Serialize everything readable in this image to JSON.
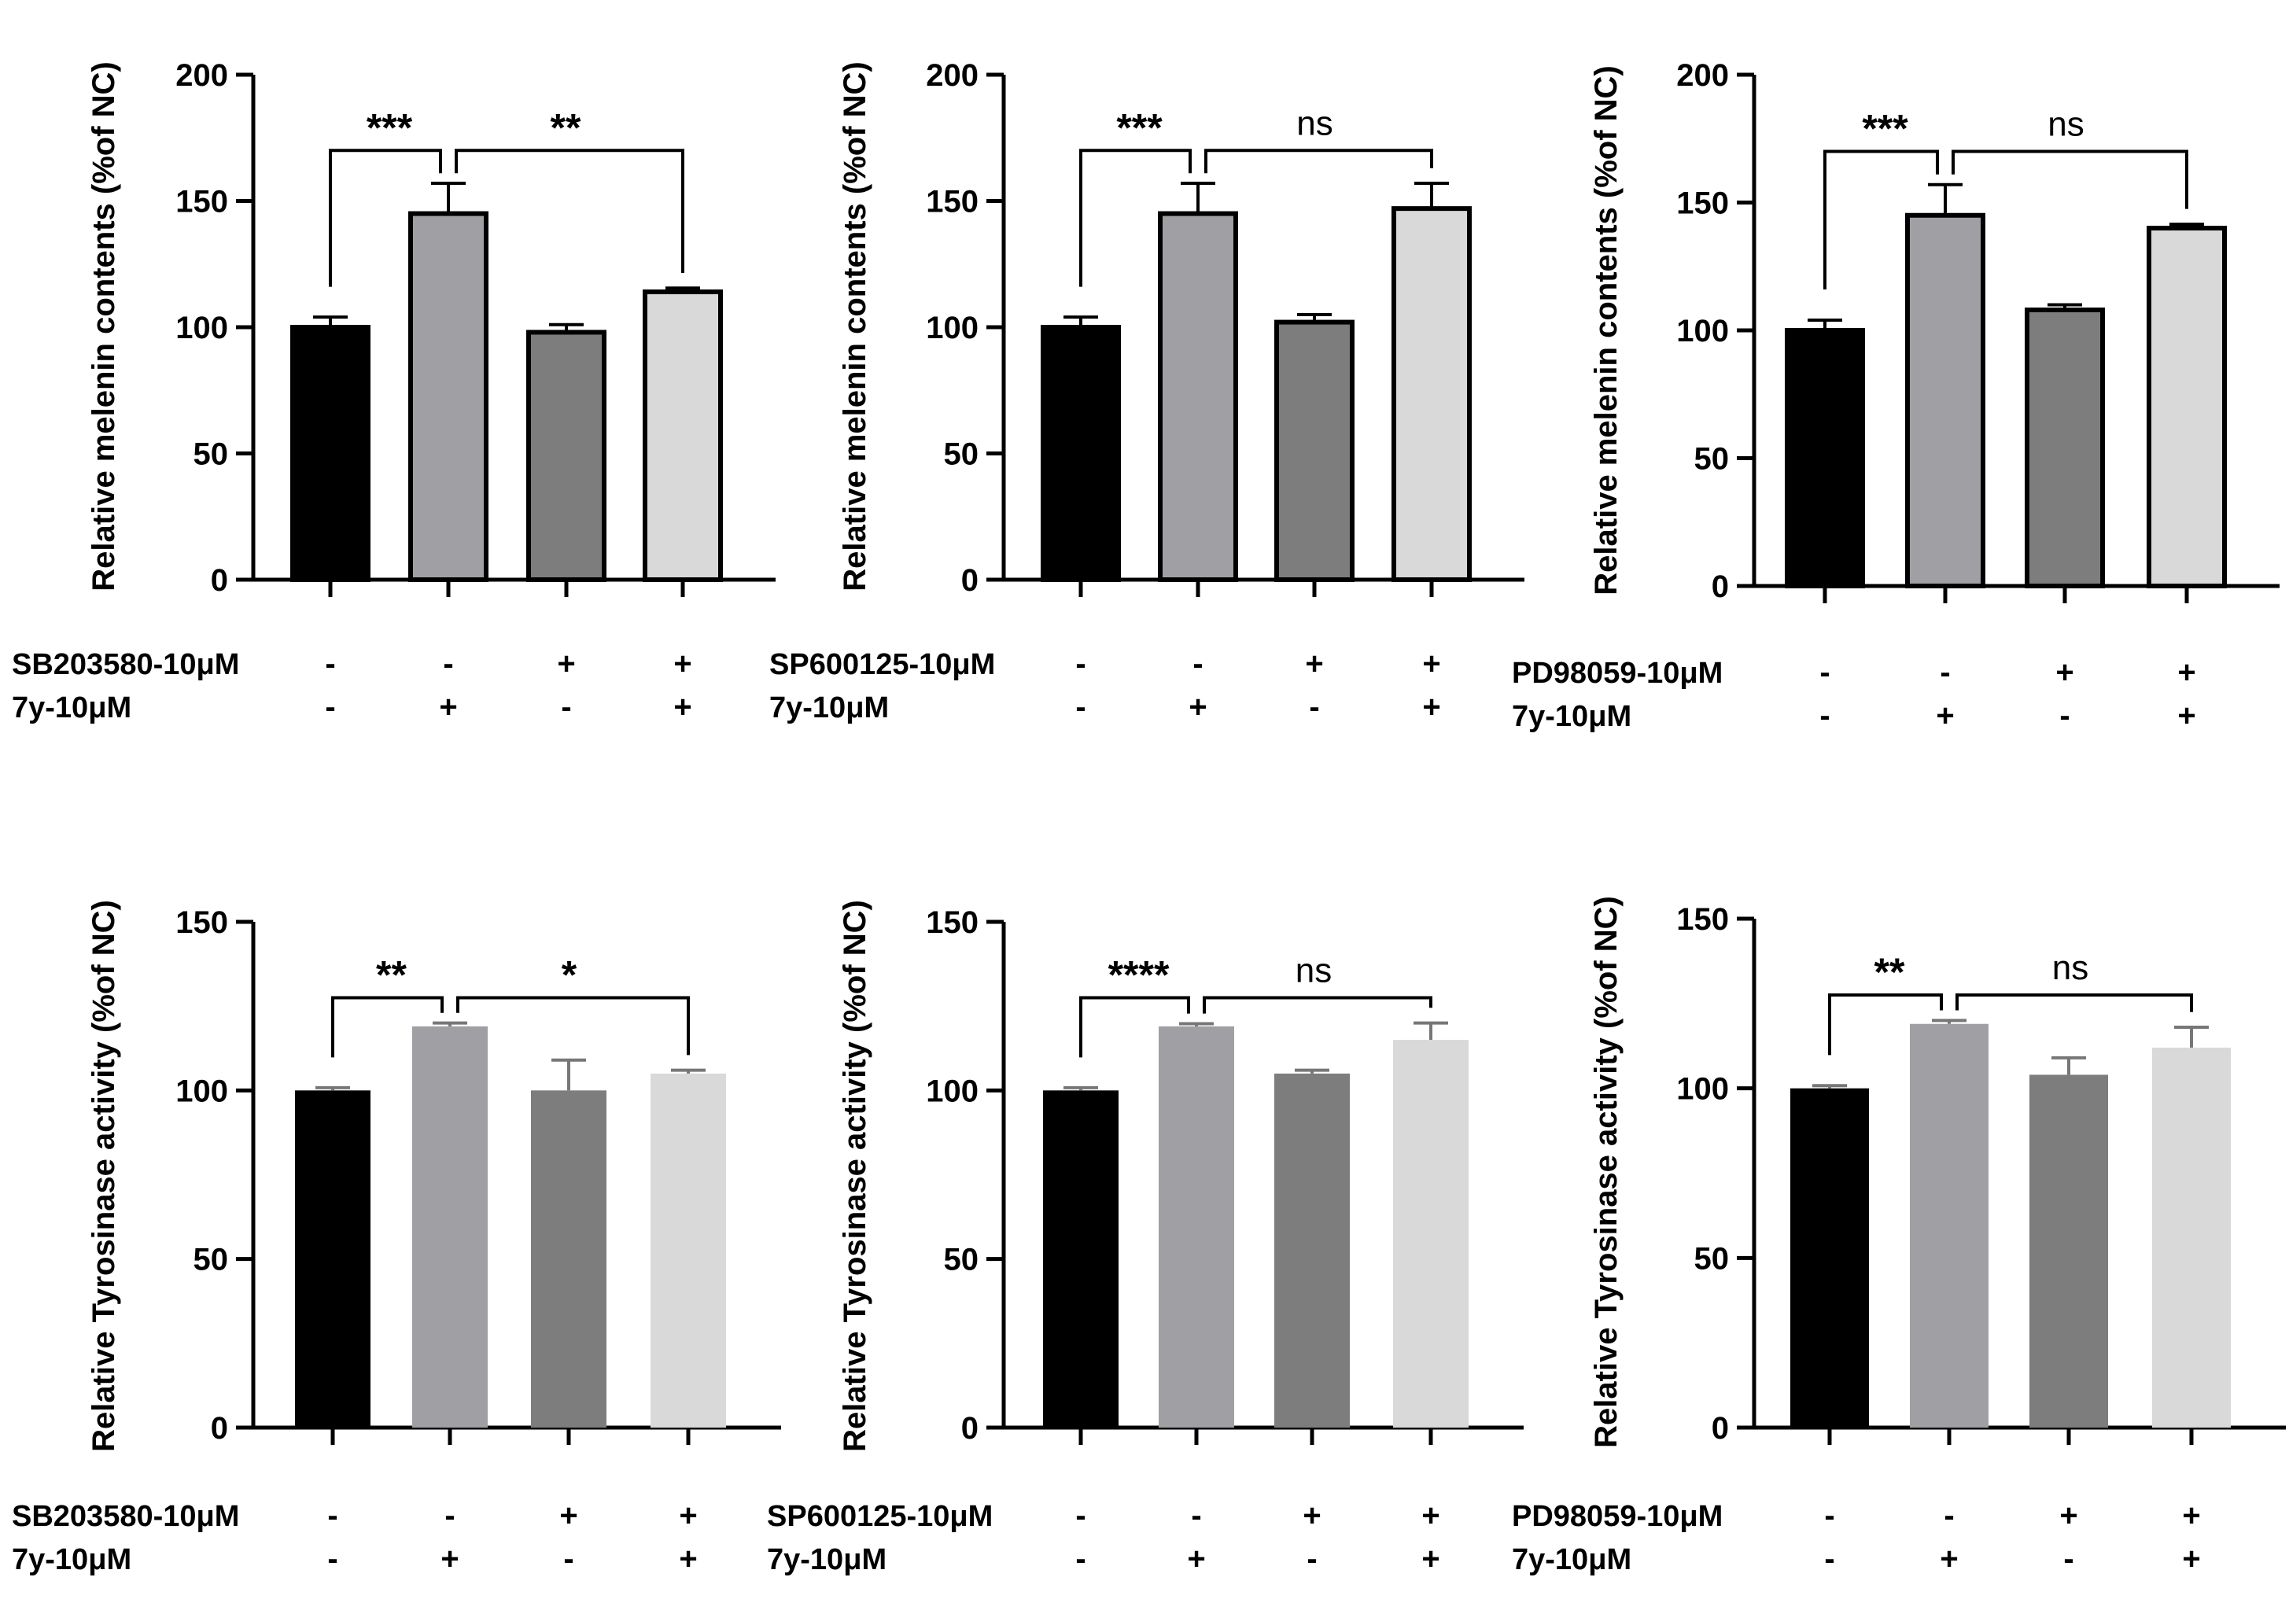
{
  "chart_data": [
    {
      "type": "bar",
      "ylabel": "Relative melenin contents (%of NC)",
      "ylim": [
        0,
        200
      ],
      "yticks": [
        0,
        50,
        100,
        150,
        200
      ],
      "values": [
        100,
        145,
        98,
        114
      ],
      "errors": [
        4,
        12,
        3,
        1.5
      ],
      "bar_style": "outlined",
      "inhibitor_label": "SB203580-10μM",
      "compound_label": "7y-10μM",
      "inhibitor_signs": [
        "-",
        "-",
        "+",
        "+"
      ],
      "compound_signs": [
        "-",
        "+",
        "-",
        "+"
      ],
      "sig_left": "***",
      "sig_right": "**"
    },
    {
      "type": "bar",
      "ylabel": "Relative melenin contents (%of NC)",
      "ylim": [
        0,
        200
      ],
      "yticks": [
        0,
        50,
        100,
        150,
        200
      ],
      "values": [
        100,
        145,
        102,
        147
      ],
      "errors": [
        4,
        12,
        3,
        10
      ],
      "bar_style": "outlined",
      "inhibitor_label": "SP600125-10μM",
      "compound_label": "7y-10μM",
      "inhibitor_signs": [
        "-",
        "-",
        "+",
        "+"
      ],
      "compound_signs": [
        "-",
        "+",
        "-",
        "+"
      ],
      "sig_left": "***",
      "sig_right": "ns"
    },
    {
      "type": "bar",
      "ylabel": "Relative melenin contents (%of NC)",
      "ylim": [
        0,
        200
      ],
      "yticks": [
        0,
        50,
        100,
        150,
        200
      ],
      "values": [
        100,
        145,
        108,
        140
      ],
      "errors": [
        4,
        12,
        2,
        1.5
      ],
      "bar_style": "outlined",
      "inhibitor_label": "PD98059-10μM",
      "compound_label": "7y-10μM",
      "inhibitor_signs": [
        "-",
        "-",
        "+",
        "+"
      ],
      "compound_signs": [
        "-",
        "+",
        "-",
        "+"
      ],
      "sig_left": "***",
      "sig_right": "ns"
    },
    {
      "type": "bar",
      "ylabel": "Relative Tyrosinase activity (%of NC)",
      "ylim": [
        0,
        150
      ],
      "yticks": [
        0,
        50,
        100,
        150
      ],
      "values": [
        100,
        119,
        100,
        105
      ],
      "errors": [
        0.8,
        1,
        9,
        1
      ],
      "bar_style": "filled",
      "inhibitor_label": "SB203580-10μM",
      "compound_label": "7y-10μM",
      "inhibitor_signs": [
        "-",
        "-",
        "+",
        "+"
      ],
      "compound_signs": [
        "-",
        "+",
        "-",
        "+"
      ],
      "sig_left": "**",
      "sig_right": "*"
    },
    {
      "type": "bar",
      "ylabel": "Relative Tyrosinase activity (%of NC)",
      "ylim": [
        0,
        150
      ],
      "yticks": [
        0,
        50,
        100,
        150
      ],
      "values": [
        100,
        119,
        105,
        115
      ],
      "errors": [
        0.8,
        0.8,
        1,
        5
      ],
      "bar_style": "filled",
      "inhibitor_label": "SP600125-10μM",
      "compound_label": "7y-10μM",
      "inhibitor_signs": [
        "-",
        "-",
        "+",
        "+"
      ],
      "compound_signs": [
        "-",
        "+",
        "-",
        "+"
      ],
      "sig_left": "****",
      "sig_right": "ns"
    },
    {
      "type": "bar",
      "ylabel": "Relative Tyrosinase activity (%of NC)",
      "ylim": [
        0,
        150
      ],
      "yticks": [
        0,
        50,
        100,
        150
      ],
      "values": [
        100,
        119,
        104,
        112
      ],
      "errors": [
        0.8,
        1,
        5,
        6
      ],
      "bar_style": "filled",
      "inhibitor_label": "PD98059-10μM",
      "compound_label": "7y-10μM",
      "inhibitor_signs": [
        "-",
        "-",
        "+",
        "+"
      ],
      "compound_signs": [
        "-",
        "+",
        "-",
        "+"
      ],
      "sig_left": "**",
      "sig_right": "ns"
    }
  ],
  "colors": {
    "bar_fills": [
      "#000000",
      "#a0a0a4",
      "#7d7d7d",
      "#d9d9d9"
    ],
    "axis": "#000000"
  }
}
